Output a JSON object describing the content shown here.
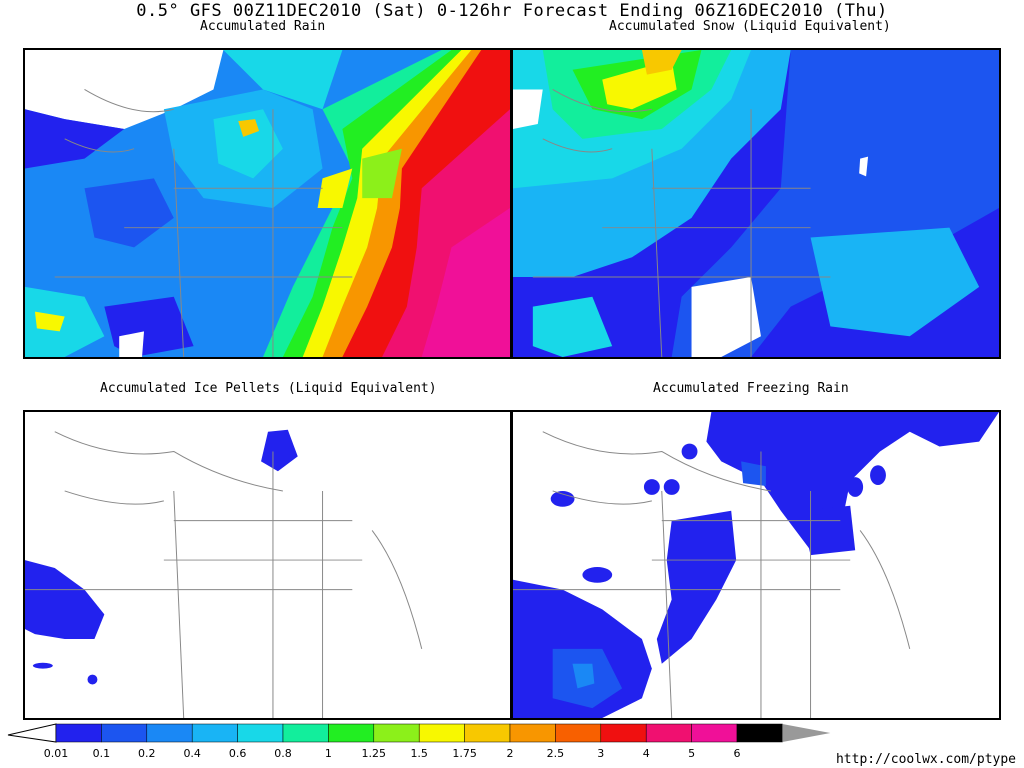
{
  "header": {
    "title": "0.5° GFS 00Z11DEC2010 (Sat) 0-126hr Forecast Ending 06Z16DEC2010 (Thu)"
  },
  "panels": [
    {
      "title": "Accumulated Rain"
    },
    {
      "title": "Accumulated Snow (Liquid Equivalent)"
    },
    {
      "title": "Accumulated Ice Pellets (Liquid Equivalent)"
    },
    {
      "title": "Accumulated Freezing Rain"
    }
  ],
  "legend": {
    "labels": [
      "0.01",
      "0.1",
      "0.2",
      "0.4",
      "0.6",
      "0.8",
      "1",
      "1.25",
      "1.5",
      "1.75",
      "2",
      "2.5",
      "3",
      "4",
      "5",
      "6"
    ],
    "colors": [
      "#2222ee",
      "#1c55f0",
      "#1a88f5",
      "#19b4f5",
      "#18d8e8",
      "#12ee9c",
      "#22ee22",
      "#8cf01a",
      "#f8f800",
      "#f8c800",
      "#f89600",
      "#f86000",
      "#f01010",
      "#f01070",
      "#f01098",
      "#000000"
    ],
    "end_color": "#999999"
  },
  "footer": {
    "url": "http://coolwx.com/ptype"
  }
}
